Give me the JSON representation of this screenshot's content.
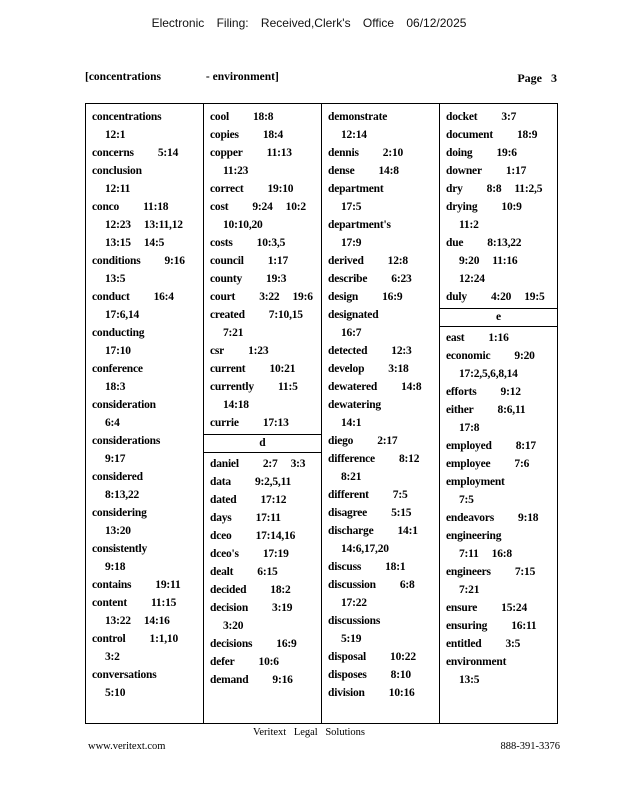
{
  "header": {
    "filing_text": "Electronic Filing: Received,Clerk's Office 06/12/2025"
  },
  "page_header": {
    "index_range_start": "[concentrations",
    "index_range_end": "- environment]",
    "page_word": "Page",
    "page_number": "3"
  },
  "footer": {
    "brand": "Veritext Legal Solutions",
    "url": "www.veritext.com",
    "phone": "888-391-3376"
  },
  "index": {
    "columns": [
      [
        {
          "w": "concentrations",
          "lines": [
            [],
            [
              "12:1"
            ]
          ]
        },
        {
          "w": "concerns",
          "lines": [
            [
              "5:14"
            ]
          ]
        },
        {
          "w": "conclusion",
          "lines": [
            [],
            [
              "12:11"
            ]
          ]
        },
        {
          "w": "conco",
          "lines": [
            [
              "11:18"
            ],
            [
              "12:23",
              "13:11,12"
            ],
            [
              "13:15",
              "14:5"
            ]
          ]
        },
        {
          "w": "conditions",
          "lines": [
            [
              "9:16"
            ],
            [
              "13:5"
            ]
          ]
        },
        {
          "w": "conduct",
          "lines": [
            [
              "16:4"
            ],
            [
              "17:6,14"
            ]
          ]
        },
        {
          "w": "conducting",
          "lines": [
            [],
            [
              "17:10"
            ]
          ]
        },
        {
          "w": "conference",
          "lines": [
            [],
            [
              "18:3"
            ]
          ]
        },
        {
          "w": "consideration",
          "lines": [
            [],
            [
              "6:4"
            ]
          ]
        },
        {
          "w": "considerations",
          "lines": [
            [],
            [
              "9:17"
            ]
          ]
        },
        {
          "w": "considered",
          "lines": [
            [],
            [
              "8:13,22"
            ]
          ]
        },
        {
          "w": "considering",
          "lines": [
            [],
            [
              "13:20"
            ]
          ]
        },
        {
          "w": "consistently",
          "lines": [
            [],
            [
              "9:18"
            ]
          ]
        },
        {
          "w": "contains",
          "lines": [
            [
              "19:11"
            ]
          ]
        },
        {
          "w": "content",
          "lines": [
            [
              "11:15"
            ],
            [
              "13:22",
              "14:16"
            ]
          ]
        },
        {
          "w": "control",
          "lines": [
            [
              "1:1,10"
            ],
            [
              "3:2"
            ]
          ]
        },
        {
          "w": "conversations",
          "lines": [
            [],
            [
              "5:10"
            ]
          ]
        }
      ],
      [
        {
          "w": "cool",
          "lines": [
            [
              "18:8"
            ]
          ]
        },
        {
          "w": "copies",
          "lines": [
            [
              "18:4"
            ]
          ]
        },
        {
          "w": "copper",
          "lines": [
            [
              "11:13"
            ],
            [
              "11:23"
            ]
          ]
        },
        {
          "w": "correct",
          "lines": [
            [
              "19:10"
            ]
          ]
        },
        {
          "w": "cost",
          "lines": [
            [
              "9:24",
              "10:2"
            ],
            [
              "10:10,20"
            ]
          ]
        },
        {
          "w": "costs",
          "lines": [
            [
              "10:3,5"
            ]
          ]
        },
        {
          "w": "council",
          "lines": [
            [
              "1:17"
            ]
          ]
        },
        {
          "w": "county",
          "lines": [
            [
              "19:3"
            ]
          ]
        },
        {
          "w": "court",
          "lines": [
            [
              "3:22",
              "19:6"
            ]
          ]
        },
        {
          "w": "created",
          "lines": [
            [
              "7:10,15"
            ],
            [
              "7:21"
            ]
          ]
        },
        {
          "w": "csr",
          "lines": [
            [
              "1:23"
            ]
          ]
        },
        {
          "w": "current",
          "lines": [
            [
              "10:21"
            ]
          ]
        },
        {
          "w": "currently",
          "lines": [
            [
              "11:5"
            ],
            [
              "14:18"
            ]
          ]
        },
        {
          "w": "currie",
          "lines": [
            [
              "17:13"
            ]
          ]
        },
        {
          "h": "d"
        },
        {
          "w": "daniel",
          "lines": [
            [
              "2:7",
              "3:3"
            ]
          ]
        },
        {
          "w": "data",
          "lines": [
            [
              "9:2,5,11"
            ]
          ]
        },
        {
          "w": "dated",
          "lines": [
            [
              "17:12"
            ]
          ]
        },
        {
          "w": "days",
          "lines": [
            [
              "17:11"
            ]
          ]
        },
        {
          "w": "dceo",
          "lines": [
            [
              "17:14,16"
            ]
          ]
        },
        {
          "w": "dceo's",
          "lines": [
            [
              "17:19"
            ]
          ]
        },
        {
          "w": "dealt",
          "lines": [
            [
              "6:15"
            ]
          ]
        },
        {
          "w": "decided",
          "lines": [
            [
              "18:2"
            ]
          ]
        },
        {
          "w": "decision",
          "lines": [
            [
              "3:19"
            ],
            [
              "3:20"
            ]
          ]
        },
        {
          "w": "decisions",
          "lines": [
            [
              "16:9"
            ]
          ]
        },
        {
          "w": "defer",
          "lines": [
            [
              "10:6"
            ]
          ]
        },
        {
          "w": "demand",
          "lines": [
            [
              "9:16"
            ]
          ]
        }
      ],
      [
        {
          "w": "demonstrate",
          "lines": [
            [],
            [
              "12:14"
            ]
          ]
        },
        {
          "w": "dennis",
          "lines": [
            [
              "2:10"
            ]
          ]
        },
        {
          "w": "dense",
          "lines": [
            [
              "14:8"
            ]
          ]
        },
        {
          "w": "department",
          "lines": [
            [],
            [
              "17:5"
            ]
          ]
        },
        {
          "w": "department's",
          "lines": [
            [],
            [
              "17:9"
            ]
          ]
        },
        {
          "w": "derived",
          "lines": [
            [
              "12:8"
            ]
          ]
        },
        {
          "w": "describe",
          "lines": [
            [
              "6:23"
            ]
          ]
        },
        {
          "w": "design",
          "lines": [
            [
              "16:9"
            ]
          ]
        },
        {
          "w": "designated",
          "lines": [
            [],
            [
              "16:7"
            ]
          ]
        },
        {
          "w": "detected",
          "lines": [
            [
              "12:3"
            ]
          ]
        },
        {
          "w": "develop",
          "lines": [
            [
              "3:18"
            ]
          ]
        },
        {
          "w": "dewatered",
          "lines": [
            [
              "14:8"
            ]
          ]
        },
        {
          "w": "dewatering",
          "lines": [
            [],
            [
              "14:1"
            ]
          ]
        },
        {
          "w": "diego",
          "lines": [
            [
              "2:17"
            ]
          ]
        },
        {
          "w": "difference",
          "lines": [
            [
              "8:12"
            ],
            [
              "8:21"
            ]
          ]
        },
        {
          "w": "different",
          "lines": [
            [
              "7:5"
            ]
          ]
        },
        {
          "w": "disagree",
          "lines": [
            [
              "5:15"
            ]
          ]
        },
        {
          "w": "discharge",
          "lines": [
            [
              "14:1"
            ],
            [
              "14:6,17,20"
            ]
          ]
        },
        {
          "w": "discuss",
          "lines": [
            [
              "18:1"
            ]
          ]
        },
        {
          "w": "discussion",
          "lines": [
            [
              "6:8"
            ],
            [
              "17:22"
            ]
          ]
        },
        {
          "w": "discussions",
          "lines": [
            [],
            [
              "5:19"
            ]
          ]
        },
        {
          "w": "disposal",
          "lines": [
            [
              "10:22"
            ]
          ]
        },
        {
          "w": "disposes",
          "lines": [
            [
              "8:10"
            ]
          ]
        },
        {
          "w": "division",
          "lines": [
            [
              "10:16"
            ]
          ]
        }
      ],
      [
        {
          "w": "docket",
          "lines": [
            [
              "3:7"
            ]
          ]
        },
        {
          "w": "document",
          "lines": [
            [
              "18:9"
            ]
          ]
        },
        {
          "w": "doing",
          "lines": [
            [
              "19:6"
            ]
          ]
        },
        {
          "w": "downer",
          "lines": [
            [
              "1:17"
            ]
          ]
        },
        {
          "w": "dry",
          "lines": [
            [
              "8:8",
              "11:2,5"
            ]
          ]
        },
        {
          "w": "drying",
          "lines": [
            [
              "10:9"
            ],
            [
              "11:2"
            ]
          ]
        },
        {
          "w": "due",
          "lines": [
            [
              "8:13,22"
            ],
            [
              "9:20",
              "11:16"
            ],
            [
              "12:24"
            ]
          ]
        },
        {
          "w": "duly",
          "lines": [
            [
              "4:20",
              "19:5"
            ]
          ]
        },
        {
          "h": "e"
        },
        {
          "w": "east",
          "lines": [
            [
              "1:16"
            ]
          ]
        },
        {
          "w": "economic",
          "lines": [
            [
              "9:20"
            ],
            [
              "17:2,5,6,8,14"
            ]
          ]
        },
        {
          "w": "efforts",
          "lines": [
            [
              "9:12"
            ]
          ]
        },
        {
          "w": "either",
          "lines": [
            [
              "8:6,11"
            ],
            [
              "17:8"
            ]
          ]
        },
        {
          "w": "employed",
          "lines": [
            [
              "8:17"
            ]
          ]
        },
        {
          "w": "employee",
          "lines": [
            [
              "7:6"
            ]
          ]
        },
        {
          "w": "employment",
          "lines": [
            [],
            [
              "7:5"
            ]
          ]
        },
        {
          "w": "endeavors",
          "lines": [
            [
              "9:18"
            ]
          ]
        },
        {
          "w": "engineering",
          "lines": [
            [],
            [
              "7:11",
              "16:8"
            ]
          ]
        },
        {
          "w": "engineers",
          "lines": [
            [
              "7:15"
            ],
            [
              "7:21"
            ]
          ]
        },
        {
          "w": "ensure",
          "lines": [
            [
              "15:24"
            ]
          ]
        },
        {
          "w": "ensuring",
          "lines": [
            [
              "16:11"
            ]
          ]
        },
        {
          "w": "entitled",
          "lines": [
            [
              "3:5"
            ]
          ]
        },
        {
          "w": "environment",
          "lines": [
            [],
            [
              "13:5"
            ]
          ]
        }
      ]
    ]
  }
}
